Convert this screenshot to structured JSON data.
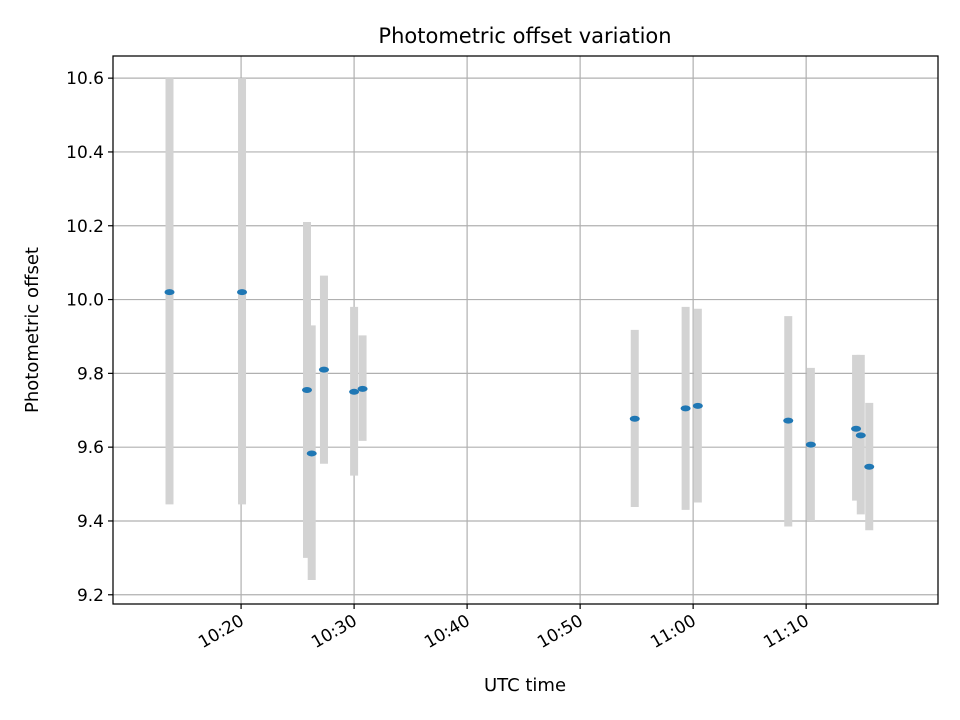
{
  "chart_data": {
    "type": "scatter",
    "title": "Photometric offset variation",
    "xlabel": "UTC time",
    "ylabel": "Photometric offset",
    "x_unit": "time of day (HH:MM:SS)",
    "xlim": [
      "10:08:40",
      "11:21:40"
    ],
    "ylim": [
      9.175,
      10.66
    ],
    "x_ticks": [
      "10:20",
      "10:30",
      "10:40",
      "10:50",
      "11:00",
      "11:10"
    ],
    "y_ticks": [
      "9.2",
      "9.4",
      "9.6",
      "9.8",
      "10.0",
      "10.2",
      "10.4",
      "10.6"
    ],
    "grid": true,
    "colors": {
      "points": "#1f77b4",
      "errorbars": "#d3d3d3",
      "grid": "#b0b0b0"
    },
    "series": [
      {
        "points": [
          {
            "x": "10:13:40",
            "y": 10.02,
            "y_low": 9.445,
            "y_high": 10.6
          },
          {
            "x": "10:20:05",
            "y": 10.02,
            "y_low": 9.445,
            "y_high": 10.6
          },
          {
            "x": "10:25:50",
            "y": 9.755,
            "y_low": 9.3,
            "y_high": 10.21
          },
          {
            "x": "10:26:15",
            "y": 9.583,
            "y_low": 9.24,
            "y_high": 9.93
          },
          {
            "x": "10:27:20",
            "y": 9.81,
            "y_low": 9.555,
            "y_high": 10.065
          },
          {
            "x": "10:30:00",
            "y": 9.75,
            "y_low": 9.523,
            "y_high": 9.98
          },
          {
            "x": "10:30:45",
            "y": 9.758,
            "y_low": 9.617,
            "y_high": 9.903
          },
          {
            "x": "10:54:50",
            "y": 9.677,
            "y_low": 9.438,
            "y_high": 9.918
          },
          {
            "x": "10:59:20",
            "y": 9.705,
            "y_low": 9.43,
            "y_high": 9.98
          },
          {
            "x": "11:00:25",
            "y": 9.712,
            "y_low": 9.45,
            "y_high": 9.975
          },
          {
            "x": "11:08:25",
            "y": 9.672,
            "y_low": 9.385,
            "y_high": 9.955
          },
          {
            "x": "11:10:25",
            "y": 9.607,
            "y_low": 9.4,
            "y_high": 9.815
          },
          {
            "x": "11:14:25",
            "y": 9.65,
            "y_low": 9.455,
            "y_high": 9.85
          },
          {
            "x": "11:14:50",
            "y": 9.632,
            "y_low": 9.418,
            "y_high": 9.85
          },
          {
            "x": "11:15:35",
            "y": 9.547,
            "y_low": 9.375,
            "y_high": 9.72
          }
        ]
      }
    ]
  }
}
